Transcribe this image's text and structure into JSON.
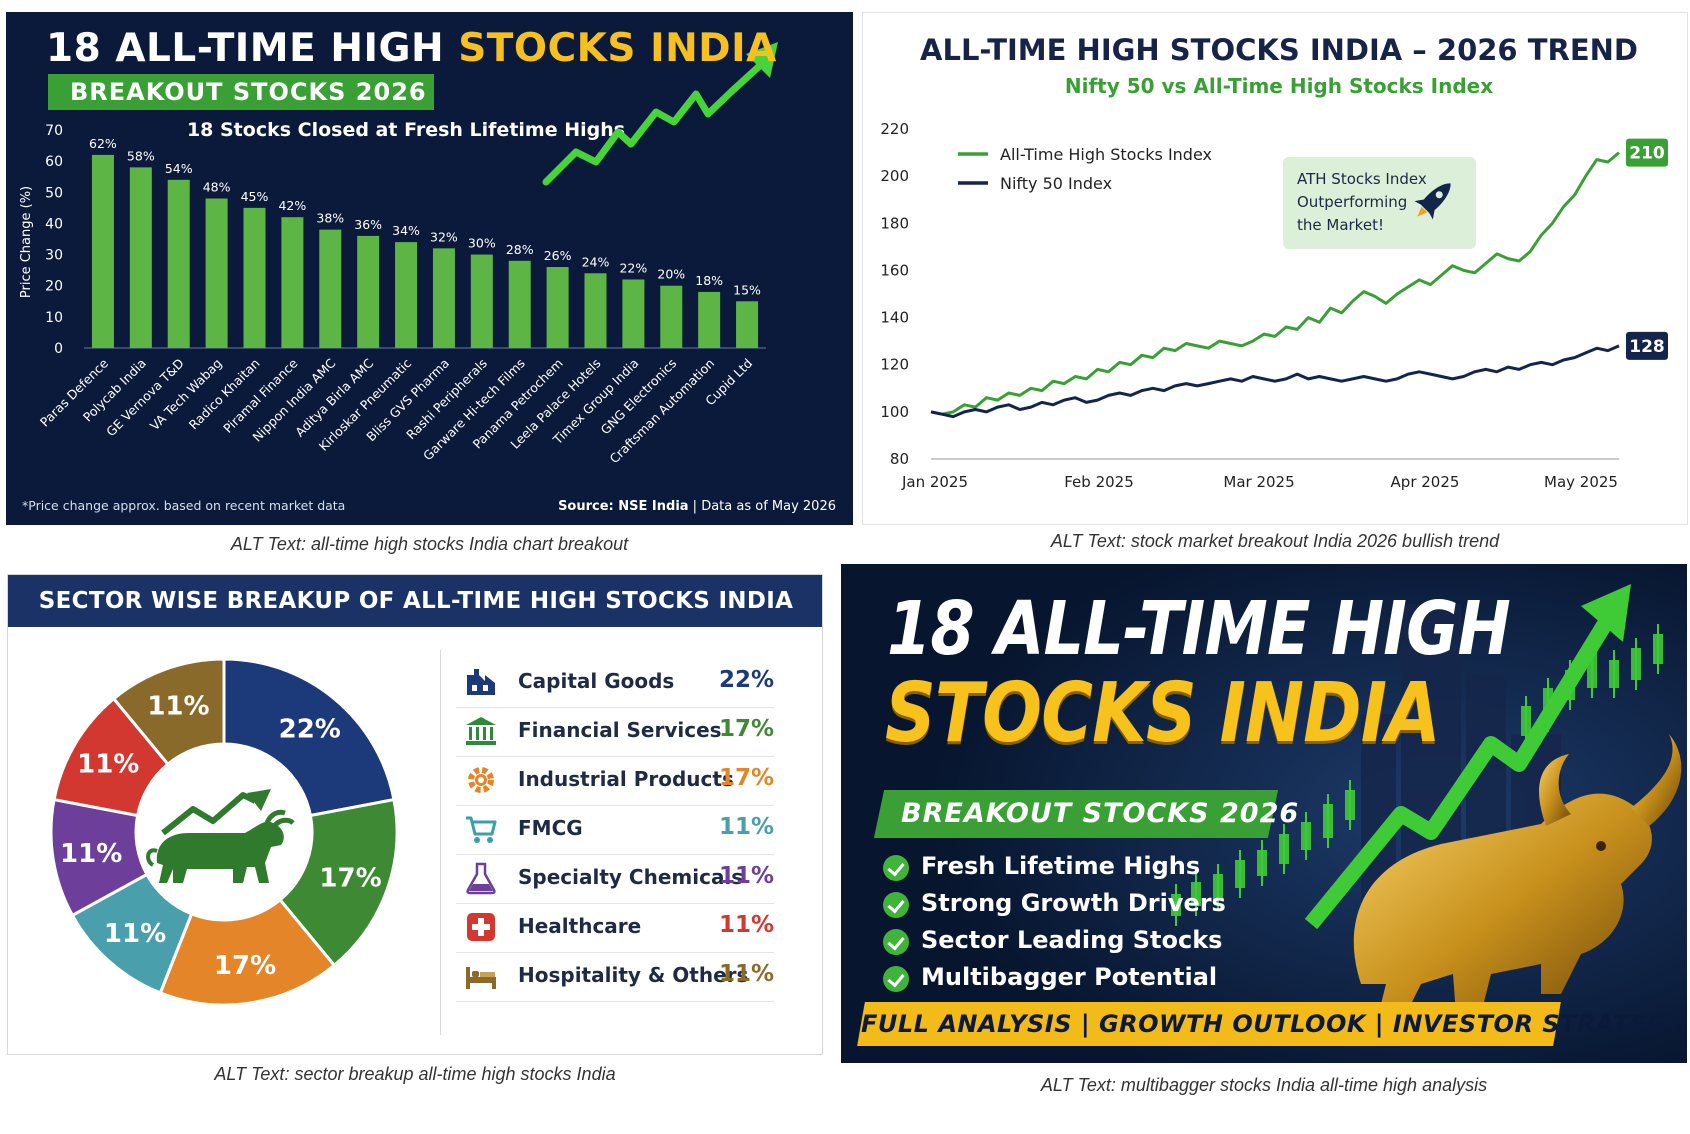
{
  "panel1": {
    "title_white": "18 ALL-TIME HIGH",
    "title_yellow": "STOCKS INDIA",
    "badge": "BREAKOUT STOCKS 2026",
    "footnote": "*Price change approx. based on recent market data",
    "source_bold": "Source: NSE India",
    "source_rest": "| Data as of May 2026",
    "caption": "ALT Text: all-time high stocks India chart breakout"
  },
  "panel2": {
    "title": "ALL-TIME HIGH STOCKS INDIA – 2026 TREND",
    "subtitle": "Nifty 50 vs All-Time High Stocks Index",
    "callout": [
      "ATH Stocks Index",
      "Outperforming",
      "the Market!"
    ],
    "caption": "ALT Text: stock market breakout India 2026 bullish trend"
  },
  "panel3": {
    "header": "SECTOR WISE BREAKUP OF ALL-TIME HIGH STOCKS INDIA",
    "caption": "ALT Text: sector breakup all-time high stocks India"
  },
  "panel4": {
    "line1": "18 ALL-TIME HIGH",
    "line2": "STOCKS INDIA",
    "badge": "BREAKOUT STOCKS 2026",
    "checks": [
      "Fresh Lifetime Highs",
      "Strong Growth Drivers",
      "Sector Leading Stocks",
      "Multibagger Potential"
    ],
    "footer": "FULL ANALYSIS  |  GROWTH OUTLOOK  |  INVESTOR STRATEGY",
    "caption": "ALT Text: multibagger stocks India all-time high analysis"
  },
  "colors": {
    "navy": "#0b1a3a",
    "green": "#3aa035",
    "yellow": "#f6c021",
    "header_blue": "#1a3266"
  },
  "icons": [
    "trend-arrow-icon",
    "rocket-icon",
    "bull-icon",
    "factory-icon",
    "bank-icon",
    "gear-icon",
    "cart-icon",
    "flask-icon",
    "medical-cross-icon",
    "bed-icon",
    "check-icon",
    "candlestick-icon",
    "gold-bull-icon"
  ],
  "chart_data": [
    {
      "type": "bar",
      "title": "18 Stocks Closed at Fresh Lifetime Highs",
      "ylabel": "Price Change (%)",
      "ylim": [
        0,
        70
      ],
      "yticks": [
        0,
        10,
        20,
        30,
        40,
        50,
        60,
        70
      ],
      "categories": [
        "Paras Defence",
        "Polycab India",
        "GE Vernova T&D",
        "VA Tech Wabag",
        "Radico Khaitan",
        "Piramal Finance",
        "Nippon India AMC",
        "Aditya Birla AMC",
        "Kirloskar Pneumatic",
        "Bliss GVS Pharma",
        "Rashi Peripherals",
        "Garware Hi-tech Films",
        "Panama Petrochem",
        "Leela Palace Hotels",
        "Timex Group India",
        "GNG Electronics",
        "Craftsman Automation",
        "Cupid Ltd"
      ],
      "values": [
        62,
        58,
        54,
        48,
        45,
        42,
        38,
        36,
        34,
        32,
        30,
        28,
        26,
        24,
        22,
        20,
        18,
        15
      ],
      "data_labels": [
        "62%",
        "58%",
        "54%",
        "48%",
        "45%",
        "42%",
        "38%",
        "36%",
        "34%",
        "32%",
        "30%",
        "28%",
        "26%",
        "24%",
        "22%",
        "20%",
        "18%",
        "15%"
      ],
      "grid": false
    },
    {
      "type": "line",
      "x_ticks": [
        "Jan 2025",
        "Feb 2025",
        "Mar 2025",
        "Apr 2025",
        "May 2025"
      ],
      "ylim": [
        80,
        220
      ],
      "yticks": [
        80,
        100,
        120,
        140,
        160,
        180,
        200,
        220
      ],
      "legend": "top-left",
      "series": [
        {
          "name": "All-Time High Stocks Index",
          "color": "#3aa035",
          "end_label": "210",
          "values": [
            100,
            99,
            100,
            103,
            102,
            106,
            105,
            108,
            107,
            110,
            109,
            113,
            112,
            115,
            114,
            118,
            117,
            121,
            120,
            124,
            123,
            127,
            126,
            129,
            128,
            127,
            130,
            129,
            128,
            130,
            133,
            132,
            136,
            135,
            140,
            138,
            144,
            142,
            147,
            151,
            149,
            146,
            150,
            153,
            156,
            154,
            158,
            162,
            160,
            159,
            163,
            167,
            165,
            164,
            168,
            175,
            180,
            187,
            192,
            200,
            207,
            206,
            210
          ]
        },
        {
          "name": "Nifty 50 Index",
          "color": "#14254d",
          "end_label": "128",
          "values": [
            100,
            99,
            98,
            100,
            101,
            100,
            102,
            103,
            101,
            102,
            104,
            103,
            105,
            106,
            104,
            105,
            107,
            108,
            107,
            109,
            110,
            109,
            111,
            112,
            111,
            112,
            113,
            114,
            113,
            115,
            114,
            113,
            114,
            116,
            114,
            115,
            114,
            113,
            114,
            115,
            114,
            113,
            114,
            116,
            117,
            116,
            115,
            114,
            115,
            117,
            118,
            117,
            119,
            118,
            120,
            121,
            120,
            122,
            123,
            125,
            127,
            126,
            128
          ]
        }
      ]
    },
    {
      "type": "pie",
      "donut": true,
      "categories": [
        "Capital Goods",
        "Financial Services",
        "Industrial Products",
        "FMCG",
        "Specialty Chemicals",
        "Healthcare",
        "Hospitality & Others"
      ],
      "values": [
        22,
        17,
        17,
        11,
        11,
        11,
        11
      ],
      "labels": [
        "22%",
        "17%",
        "17%",
        "11%",
        "11%",
        "11%",
        "11%"
      ],
      "colors": [
        "#1c3a7a",
        "#3e8a34",
        "#e5852a",
        "#4a9fad",
        "#6e3f9a",
        "#d2382f",
        "#8a6a2a"
      ]
    }
  ]
}
